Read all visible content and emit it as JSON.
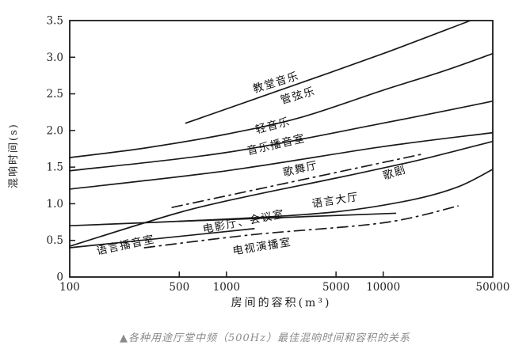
{
  "figure": {
    "caption": "▲各种用途厅堂中频（500Hz）最佳混响时间和容积的关系"
  },
  "chart_data": {
    "type": "line",
    "title": "",
    "xlabel": "房间的容积(m³)",
    "ylabel": "混响时间(s)",
    "x_scale": "log",
    "xlim": [
      100,
      50000
    ],
    "ylim": [
      0,
      3.5
    ],
    "grid": false,
    "legend_position": "inline-labels",
    "line_color": "#1a1a1a",
    "x_ticks": [
      100,
      500,
      1000,
      5000,
      10000,
      50000
    ],
    "x_tick_labels": [
      "100",
      "500",
      "1000",
      "5000",
      "10000",
      "50000"
    ],
    "y_ticks": [
      0,
      0.5,
      1.0,
      1.5,
      2.0,
      2.5,
      3.0,
      3.5
    ],
    "y_tick_labels": [
      "0",
      "0.5",
      "1.0",
      "1.5",
      "2.0",
      "2.5",
      "3.0",
      "3.5"
    ],
    "series": [
      {
        "name": "教堂音乐",
        "id": "church-music",
        "line": "solid",
        "points": [
          [
            550,
            2.1
          ],
          [
            2000,
            2.52
          ],
          [
            10000,
            3.05
          ],
          [
            36000,
            3.5
          ]
        ]
      },
      {
        "name": "管弦乐",
        "id": "orchestral-music",
        "line": "solid",
        "points": [
          [
            100,
            1.63
          ],
          [
            300,
            1.76
          ],
          [
            1000,
            1.95
          ],
          [
            3000,
            2.18
          ],
          [
            10000,
            2.55
          ],
          [
            25000,
            2.82
          ],
          [
            50000,
            3.05
          ]
        ]
      },
      {
        "name": "轻音乐",
        "id": "light-music",
        "line": "solid",
        "points": [
          [
            100,
            1.45
          ],
          [
            1000,
            1.7
          ],
          [
            10000,
            2.1
          ],
          [
            50000,
            2.4
          ]
        ]
      },
      {
        "name": "音乐播音室",
        "id": "music-broadcast-studio",
        "line": "solid",
        "points": [
          [
            100,
            1.2
          ],
          [
            1000,
            1.45
          ],
          [
            10000,
            1.78
          ],
          [
            50000,
            1.97
          ]
        ]
      },
      {
        "name": "歌舞厅",
        "id": "dance-hall",
        "line": "dash-dot",
        "points": [
          [
            450,
            0.95
          ],
          [
            18000,
            1.68
          ]
        ]
      },
      {
        "name": "歌剧",
        "id": "opera",
        "line": "solid",
        "points": [
          [
            100,
            0.42
          ],
          [
            500,
            0.88
          ],
          [
            1500,
            1.12
          ],
          [
            5000,
            1.35
          ],
          [
            15000,
            1.57
          ],
          [
            30000,
            1.73
          ],
          [
            50000,
            1.85
          ]
        ]
      },
      {
        "name": "语言大厅",
        "id": "speech-hall",
        "line": "solid",
        "points": [
          [
            100,
            0.7
          ],
          [
            1000,
            0.79
          ],
          [
            5000,
            0.89
          ],
          [
            15000,
            1.05
          ],
          [
            30000,
            1.23
          ],
          [
            50000,
            1.47
          ]
        ]
      },
      {
        "name": "电影厅、会议室",
        "id": "cinema-conference-room",
        "line": "solid",
        "points": [
          [
            500,
            0.76
          ],
          [
            12000,
            0.87
          ]
        ]
      },
      {
        "name": "语言播音室",
        "id": "speech-broadcast-studio",
        "line": "solid",
        "points": [
          [
            100,
            0.4
          ],
          [
            1500,
            0.66
          ]
        ]
      },
      {
        "name": "电视演播室",
        "id": "tv-studio",
        "line": "dash-dot",
        "points": [
          [
            300,
            0.4
          ],
          [
            1500,
            0.58
          ],
          [
            10000,
            0.74
          ],
          [
            30000,
            0.97
          ]
        ]
      }
    ],
    "labels": [
      {
        "text": "教堂音乐",
        "series": "church-music",
        "v": 2100,
        "rt": 2.61,
        "rotate": -17
      },
      {
        "text": "管弦乐",
        "series": "orchestral-music",
        "v": 2900,
        "rt": 2.43,
        "rotate": -16
      },
      {
        "text": "轻音乐",
        "series": "light-music",
        "v": 2000,
        "rt": 2.02,
        "rotate": -14
      },
      {
        "text": "音乐播音室",
        "series": "music-broadcast-studio",
        "v": 2100,
        "rt": 1.76,
        "rotate": -13
      },
      {
        "text": "歌舞厅",
        "series": "dance-hall",
        "v": 3000,
        "rt": 1.43,
        "rotate": -13
      },
      {
        "text": "歌剧",
        "series": "opera",
        "v": 12000,
        "rt": 1.38,
        "rotate": -18
      },
      {
        "text": "语言大厅",
        "series": "speech-hall",
        "v": 5000,
        "rt": 1.0,
        "rotate": -9
      },
      {
        "text": "电影厅、会议室",
        "series": "cinema-conference-room",
        "v": 1300,
        "rt": 0.71,
        "rotate": -11
      },
      {
        "text": "语言播音室",
        "series": "speech-broadcast-studio",
        "v": 230,
        "rt": 0.39,
        "rotate": -12
      },
      {
        "text": "电视演播室",
        "series": "tv-studio",
        "v": 1700,
        "rt": 0.37,
        "rotate": -9
      }
    ]
  }
}
